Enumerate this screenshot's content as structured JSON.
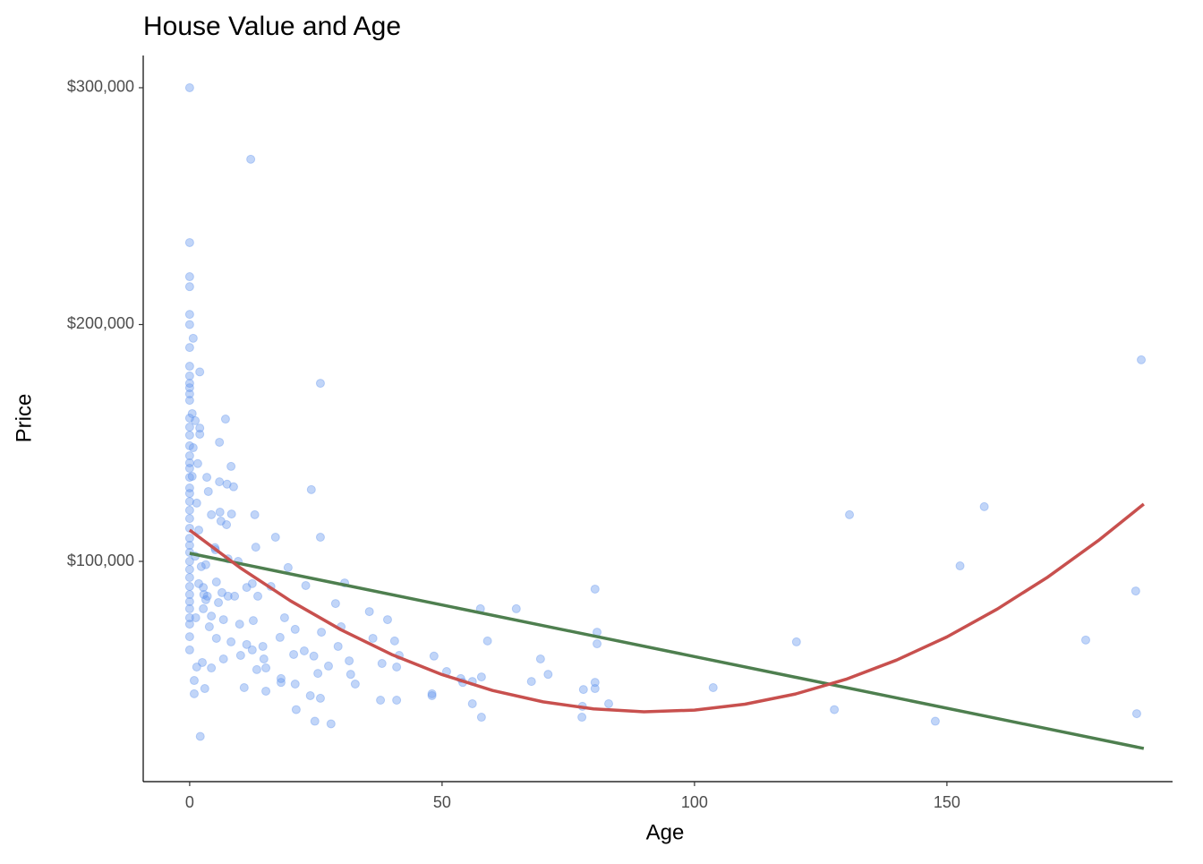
{
  "chart_data": {
    "type": "scatter",
    "title": "House Value and Age",
    "x_label": "Age",
    "y_label": "Price",
    "xlim": [
      -9.2,
      194.7
    ],
    "ylim": [
      7000,
      313600
    ],
    "xticks": [
      0,
      50,
      100,
      150
    ],
    "yticks": [
      {
        "value": 100000,
        "label": "$100,000"
      },
      {
        "value": 200000,
        "label": "$200,000"
      },
      {
        "value": 300000,
        "label": "$300,000"
      }
    ],
    "grid": false,
    "series": [
      {
        "style": "points",
        "color": "#6495ED",
        "alpha": 0.4,
        "x": [
          0,
          0,
          0,
          0,
          0,
          0,
          0,
          0,
          0,
          0,
          0,
          0,
          0,
          0,
          0,
          0,
          0,
          0,
          0,
          0,
          0,
          0,
          0,
          0,
          0,
          0,
          0,
          0,
          0,
          0,
          0,
          0,
          0,
          0,
          0,
          0,
          0,
          0,
          0,
          0,
          0,
          12.1,
          25.9,
          7.1,
          5.9,
          2,
          0.7,
          2,
          2,
          8.2,
          7.4,
          24.1,
          3.7,
          5.9,
          12.9,
          8.3,
          6,
          4.3,
          7.3,
          25.9,
          17,
          13.1,
          1.8,
          9.6,
          19.5,
          7.6,
          5.1,
          30.7,
          23,
          7.6,
          16.1,
          28.9,
          35.6,
          39.2,
          18.8,
          12.6,
          9.9,
          6.7,
          3.9,
          4.3,
          26.1,
          30,
          20.9,
          17.9,
          14.5,
          11.3,
          8.2,
          5.3,
          29.4,
          36.3,
          40.6,
          59,
          80.3,
          64.7,
          57.6,
          80.7,
          80.7,
          69.5,
          48.4,
          41.5,
          38.1,
          31.6,
          24.6,
          20.6,
          14.7,
          12.4,
          10.1,
          6.7,
          41,
          27.5,
          22.7,
          15.1,
          13.3,
          25.4,
          31.9,
          50.9,
          53.7,
          57.8,
          71,
          67.7,
          80.3,
          80.3,
          78,
          54.1,
          56,
          18.1,
          18.1,
          20.9,
          32.8,
          10.8,
          15.1,
          3,
          0.9,
          0.9,
          48,
          48,
          23.9,
          25.9,
          37.8,
          41,
          56,
          83,
          77.8,
          103.7,
          120.2,
          130.7,
          157.4,
          152.6,
          177.5,
          187.4,
          188.5,
          187.6,
          127.7,
          147.7,
          21.1,
          57.8,
          77.7,
          24.8,
          28,
          2.1,
          5,
          1.1,
          2.3,
          3.2,
          2.8,
          3.5,
          2.7,
          0.5,
          1.1,
          0.7,
          1.4,
          0.5,
          1.2,
          1.8,
          2.7,
          3.2,
          6.4,
          8.9,
          11.3,
          12.4,
          13.5,
          8.7,
          1.6,
          3.4,
          6.2,
          5.3,
          5.7,
          2.5,
          1.4,
          4.3
        ],
        "values": [
          300000,
          234600,
          220200,
          216000,
          204300,
          200000,
          190300,
          182400,
          178300,
          175200,
          173300,
          170700,
          168000,
          160500,
          156700,
          153300,
          148800,
          144600,
          141600,
          139300,
          135500,
          131000,
          128700,
          125300,
          121600,
          118100,
          114000,
          109800,
          106800,
          103800,
          100000,
          96600,
          93200,
          89400,
          86000,
          83000,
          80000,
          76200,
          73500,
          68200,
          62600,
          269800,
          175200,
          160100,
          150300,
          180000,
          194200,
          156300,
          153700,
          140100,
          132600,
          130300,
          129500,
          133600,
          119700,
          120000,
          120800,
          119700,
          115500,
          110200,
          110200,
          106000,
          113200,
          100000,
          97400,
          101100,
          104900,
          90900,
          89800,
          85300,
          89400,
          82200,
          78800,
          75400,
          76200,
          75000,
          73500,
          75400,
          72400,
          76900,
          70100,
          72400,
          71300,
          67900,
          64100,
          64900,
          66000,
          67500,
          64100,
          67500,
          66400,
          66400,
          88300,
          80000,
          80000,
          70100,
          65200,
          58800,
          60000,
          60300,
          56900,
          58000,
          60000,
          60700,
          58800,
          62600,
          60300,
          58800,
          55400,
          55800,
          62200,
          55000,
          54300,
          52700,
          52300,
          53500,
          50500,
          51200,
          52300,
          49300,
          48900,
          46300,
          45900,
          48900,
          49300,
          50500,
          48900,
          48200,
          48200,
          46700,
          45200,
          46300,
          49700,
          44100,
          44100,
          43300,
          43300,
          42200,
          41400,
          41400,
          39900,
          39900,
          38800,
          46700,
          66000,
          119700,
          123100,
          98100,
          66800,
          87500,
          185100,
          35700,
          37400,
          32500,
          37400,
          34200,
          34200,
          32500,
          31400,
          26100,
          105800,
          102200,
          97800,
          98600,
          86000,
          85300,
          80000,
          162400,
          159400,
          148000,
          124600,
          135900,
          76200,
          90600,
          89000,
          83800,
          86800,
          85300,
          89000,
          90600,
          85300,
          131500,
          141300,
          135500,
          117000,
          91300,
          82600,
          57300,
          55400,
          55000
        ]
      },
      {
        "style": "line",
        "color": "#4E7F4F",
        "x": [
          0,
          189
        ],
        "values": [
          103400,
          21000
        ]
      },
      {
        "style": "line",
        "color": "#C8504E",
        "x": [
          0,
          10,
          20,
          30,
          40,
          50,
          60,
          70,
          80,
          90,
          100,
          110,
          120,
          130,
          140,
          150,
          160,
          170,
          180,
          189
        ],
        "values": [
          113200,
          97300,
          83300,
          71100,
          60700,
          52200,
          45500,
          40700,
          37700,
          36500,
          37200,
          39700,
          44000,
          50200,
          58300,
          68100,
          79900,
          93400,
          108800,
          124200
        ]
      }
    ]
  }
}
